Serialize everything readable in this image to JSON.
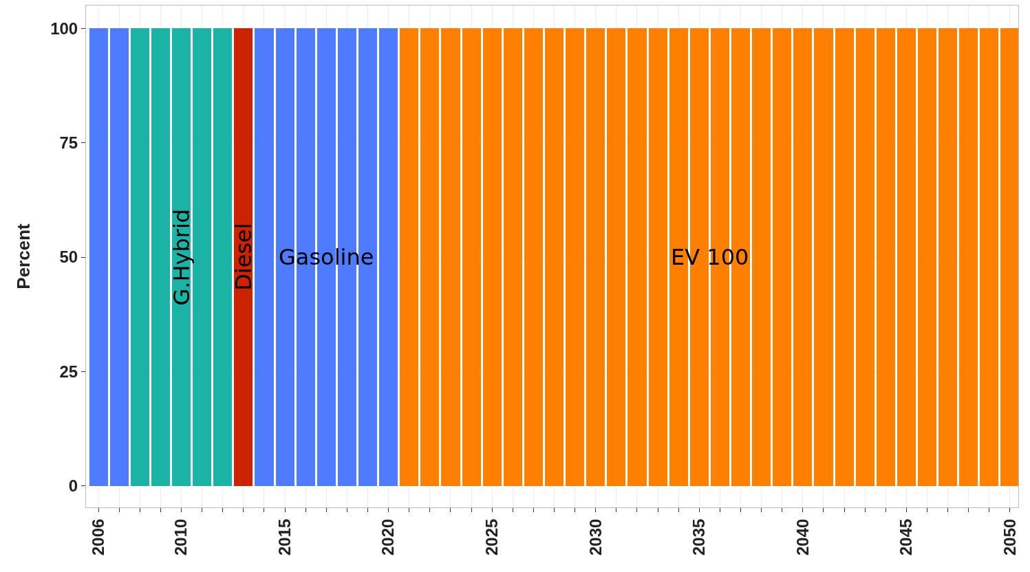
{
  "chart_data": {
    "type": "bar",
    "ylabel": "Percent",
    "stacked": true,
    "grid": true,
    "legend": false,
    "x": [
      2006,
      2007,
      2008,
      2009,
      2010,
      2011,
      2012,
      2013,
      2014,
      2015,
      2016,
      2017,
      2018,
      2019,
      2020,
      2021,
      2022,
      2023,
      2024,
      2025,
      2026,
      2027,
      2028,
      2029,
      2030,
      2031,
      2032,
      2033,
      2034,
      2035,
      2036,
      2037,
      2038,
      2039,
      2040,
      2041,
      2042,
      2043,
      2044,
      2045,
      2046,
      2047,
      2048,
      2049,
      2050
    ],
    "series": [
      {
        "name": "Gasoline",
        "color": "#4f7bff",
        "values": [
          100,
          100,
          null,
          null,
          null,
          null,
          null,
          null,
          100,
          100,
          100,
          100,
          100,
          100,
          100,
          null,
          null,
          null,
          null,
          null,
          null,
          null,
          null,
          null,
          null,
          null,
          null,
          null,
          null,
          null,
          null,
          null,
          null,
          null,
          null,
          null,
          null,
          null,
          null,
          null,
          null,
          null,
          null,
          null,
          null
        ]
      },
      {
        "name": "G.Hybrid",
        "color": "#1bb3a6",
        "values": [
          null,
          null,
          100,
          100,
          100,
          100,
          100,
          null,
          null,
          null,
          null,
          null,
          null,
          null,
          null,
          null,
          null,
          null,
          null,
          null,
          null,
          null,
          null,
          null,
          null,
          null,
          null,
          null,
          null,
          null,
          null,
          null,
          null,
          null,
          null,
          null,
          null,
          null,
          null,
          null,
          null,
          null,
          null,
          null,
          null
        ]
      },
      {
        "name": "Diesel",
        "color": "#cc2200",
        "values": [
          null,
          null,
          null,
          null,
          null,
          null,
          null,
          100,
          null,
          null,
          null,
          null,
          null,
          null,
          null,
          null,
          null,
          null,
          null,
          null,
          null,
          null,
          null,
          null,
          null,
          null,
          null,
          null,
          null,
          null,
          null,
          null,
          null,
          null,
          null,
          null,
          null,
          null,
          null,
          null,
          null,
          null,
          null,
          null,
          null
        ]
      },
      {
        "name": "EV 100",
        "color": "#ff8000",
        "values": [
          null,
          null,
          null,
          null,
          null,
          null,
          null,
          null,
          null,
          null,
          null,
          null,
          null,
          null,
          null,
          100,
          100,
          100,
          100,
          100,
          100,
          100,
          100,
          100,
          100,
          100,
          100,
          100,
          100,
          100,
          100,
          100,
          100,
          100,
          100,
          100,
          100,
          100,
          100,
          100,
          100,
          100,
          100,
          100,
          100
        ]
      }
    ],
    "xlim": [
      2005.4,
      2050.4
    ],
    "xticks": [
      2006,
      {
        "value": 2007,
        "label": null
      },
      {
        "value": 2008,
        "label": null
      },
      {
        "value": 2009,
        "label": null
      },
      2010,
      {
        "value": 2011,
        "label": null
      },
      {
        "value": 2012,
        "label": null
      },
      {
        "value": 2013,
        "label": null
      },
      {
        "value": 2014,
        "label": null
      },
      2015,
      {
        "value": 2016,
        "label": null
      },
      {
        "value": 2017,
        "label": null
      },
      {
        "value": 2018,
        "label": null
      },
      {
        "value": 2019,
        "label": null
      },
      2020,
      {
        "value": 2021,
        "label": null
      },
      {
        "value": 2022,
        "label": null
      },
      {
        "value": 2023,
        "label": null
      },
      {
        "value": 2024,
        "label": null
      },
      2025,
      {
        "value": 2026,
        "label": null
      },
      {
        "value": 2027,
        "label": null
      },
      {
        "value": 2028,
        "label": null
      },
      {
        "value": 2029,
        "label": null
      },
      2030,
      {
        "value": 2031,
        "label": null
      },
      {
        "value": 2032,
        "label": null
      },
      {
        "value": 2033,
        "label": null
      },
      {
        "value": 2034,
        "label": null
      },
      2035,
      {
        "value": 2036,
        "label": null
      },
      {
        "value": 2037,
        "label": null
      },
      {
        "value": 2038,
        "label": null
      },
      {
        "value": 2039,
        "label": null
      },
      2040,
      {
        "value": 2041,
        "label": null
      },
      {
        "value": 2042,
        "label": null
      },
      {
        "value": 2043,
        "label": null
      },
      {
        "value": 2044,
        "label": null
      },
      2045,
      {
        "value": 2046,
        "label": null
      },
      {
        "value": 2047,
        "label": null
      },
      {
        "value": 2048,
        "label": null
      },
      {
        "value": 2049,
        "label": null
      },
      2050
    ],
    "ylim": [
      -4.7,
      105
    ],
    "yticks": [
      0,
      25,
      50,
      75,
      100
    ]
  }
}
